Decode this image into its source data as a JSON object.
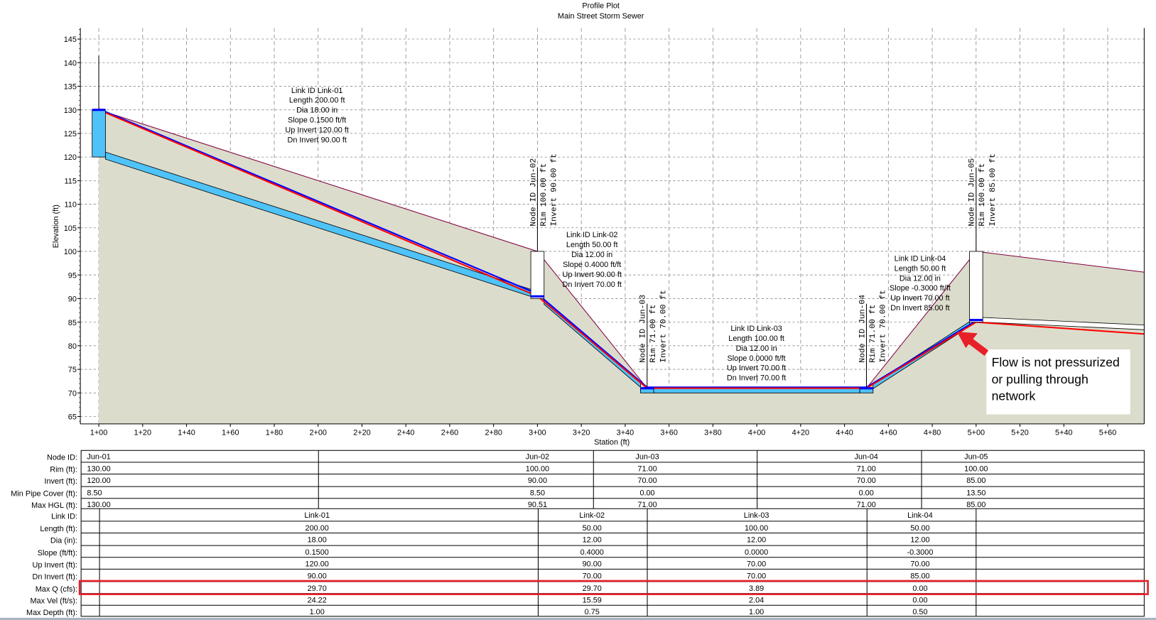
{
  "chart_data": {
    "type": "line",
    "title": "Profile Plot",
    "subtitle": "Main Street Storm Sewer",
    "xlabel": "Station (ft)",
    "ylabel": "Elevation (ft)",
    "xlim_ft": [
      92,
      577
    ],
    "ylim": [
      63.4,
      147.8
    ],
    "grid": true,
    "y_ticks": [
      65,
      70,
      75,
      80,
      85,
      90,
      95,
      100,
      105,
      110,
      115,
      120,
      125,
      130,
      135,
      140,
      145
    ],
    "x_ticks": [
      {
        "ft": 100,
        "label": "1+00"
      },
      {
        "ft": 120,
        "label": "1+20"
      },
      {
        "ft": 140,
        "label": "1+40"
      },
      {
        "ft": 160,
        "label": "1+60"
      },
      {
        "ft": 180,
        "label": "1+80"
      },
      {
        "ft": 200,
        "label": "2+00"
      },
      {
        "ft": 220,
        "label": "2+20"
      },
      {
        "ft": 240,
        "label": "2+40"
      },
      {
        "ft": 260,
        "label": "2+60"
      },
      {
        "ft": 280,
        "label": "2+80"
      },
      {
        "ft": 300,
        "label": "3+00"
      },
      {
        "ft": 320,
        "label": "3+20"
      },
      {
        "ft": 340,
        "label": "3+40"
      },
      {
        "ft": 360,
        "label": "3+60"
      },
      {
        "ft": 380,
        "label": "3+80"
      },
      {
        "ft": 400,
        "label": "4+00"
      },
      {
        "ft": 420,
        "label": "4+20"
      },
      {
        "ft": 440,
        "label": "4+40"
      },
      {
        "ft": 460,
        "label": "4+60"
      },
      {
        "ft": 480,
        "label": "4+80"
      },
      {
        "ft": 500,
        "label": "5+00"
      },
      {
        "ft": 520,
        "label": "5+20"
      },
      {
        "ft": 540,
        "label": "5+40"
      },
      {
        "ft": 560,
        "label": "5+60"
      }
    ],
    "ground": [
      [
        100,
        130
      ],
      [
        300,
        100
      ],
      [
        350,
        71
      ],
      [
        450,
        71
      ],
      [
        500,
        100
      ],
      [
        577,
        95.6
      ]
    ],
    "hgl": [
      [
        100,
        130
      ],
      [
        300,
        90.5
      ],
      [
        350,
        71
      ],
      [
        450,
        71
      ],
      [
        500,
        85
      ],
      [
        577,
        82.5
      ]
    ],
    "egl": [
      [
        100,
        130.2
      ],
      [
        300,
        91
      ],
      [
        350,
        71.2
      ],
      [
        450,
        71.2
      ],
      [
        500,
        85.3
      ]
    ],
    "outlet_pipe": {
      "from": [
        500,
        85
      ],
      "to": [
        577,
        83.4
      ],
      "dia_ft": 1
    },
    "nodes": [
      {
        "id": "Jun-01",
        "station": 100,
        "rim": 130,
        "invert": 120,
        "full": true,
        "label_lines": []
      },
      {
        "id": "Jun-02",
        "station": 300,
        "rim": 100,
        "invert": 90,
        "full": false,
        "label_lines": [
          "Node ID Jun-02",
          "Rim 100.00 ft",
          "Invert 90.00 ft"
        ]
      },
      {
        "id": "Jun-03",
        "station": 350,
        "rim": 71,
        "invert": 70,
        "full": true,
        "label_lines": [
          "Node ID Jun-03",
          "Rim 71.00 ft",
          "Invert 70.00 ft"
        ]
      },
      {
        "id": "Jun-04",
        "station": 450,
        "rim": 71,
        "invert": 70,
        "full": true,
        "label_lines": [
          "Node ID Jun-04",
          "Rim 71.00 ft",
          "Invert 70.00 ft"
        ]
      },
      {
        "id": "Jun-05",
        "station": 500,
        "rim": 100,
        "invert": 85,
        "full": false,
        "label_lines": [
          "Node ID Jun-05",
          "Rim 100.00 ft",
          "Invert 85.00 ft"
        ]
      }
    ],
    "links": [
      {
        "id": "Link-01",
        "from": 100,
        "to": 300,
        "up_inv": 120,
        "dn_inv": 90,
        "dia_ft": 1.5,
        "label_lines": [
          "Link ID Link-01",
          "Length 200.00 ft",
          "Dia 18.00 in",
          "Slope 0.1500 ft/ft",
          "Up Invert 120.00 ft",
          "Dn Invert 90.00 ft"
        ]
      },
      {
        "id": "Link-02",
        "from": 300,
        "to": 350,
        "up_inv": 90,
        "dn_inv": 70,
        "dia_ft": 1,
        "label_lines": [
          "Link ID Link-02",
          "Length 50.00 ft",
          "Dia 12.00 in",
          "Slope 0.4000 ft/ft",
          "Up Invert 90.00 ft",
          "Dn Invert 70.00 ft"
        ]
      },
      {
        "id": "Link-03",
        "from": 350,
        "to": 450,
        "up_inv": 70,
        "dn_inv": 70,
        "dia_ft": 1,
        "label_lines": [
          "Link ID Link-03",
          "Length 100.00 ft",
          "Dia 12.00 in",
          "Slope 0.0000 ft/ft",
          "Up Invert 70.00 ft",
          "Dn Invert 70.00 ft"
        ]
      },
      {
        "id": "Link-04",
        "from": 450,
        "to": 500,
        "up_inv": 70,
        "dn_inv": 85,
        "dia_ft": 1,
        "label_lines": [
          "Link ID Link-04",
          "Length 50.00 ft",
          "Dia 12.00 in",
          "Slope -0.3000 ft/ft",
          "Up Invert 70.00 ft",
          "Dn Invert 85.00 ft"
        ]
      }
    ],
    "annotation": {
      "lines": [
        "Flow is not pressurized",
        "or pulling through",
        "network"
      ],
      "color": "#e8202a"
    }
  },
  "table": {
    "node_labels": [
      "Node ID:",
      "Rim (ft):",
      "Invert (ft):",
      "Min Pipe Cover (ft):",
      "Max HGL (ft):"
    ],
    "node_rows": [
      [
        "Jun-01",
        "Jun-02",
        "Jun-03",
        "Jun-04",
        "Jun-05"
      ],
      [
        "130.00",
        "100.00",
        "71.00",
        "71.00",
        "100.00"
      ],
      [
        "120.00",
        "90.00",
        "70.00",
        "70.00",
        "85.00"
      ],
      [
        "8.50",
        "8.50",
        "0.00",
        "0.00",
        "13.50"
      ],
      [
        "130.00",
        "90.51",
        "71.00",
        "71.00",
        "85.00"
      ]
    ],
    "link_labels": [
      "Link ID:",
      "Length (ft):",
      "Dia (in):",
      "Slope (ft/ft):",
      "Up Invert (ft):",
      "Dn Invert (ft):",
      "Max Q (cfs):",
      "Max Vel (ft/s):",
      "Max Depth (ft):"
    ],
    "link_rows": [
      [
        "Link-01",
        "Link-02",
        "Link-03",
        "Link-04"
      ],
      [
        "200.00",
        "50.00",
        "100.00",
        "50.00"
      ],
      [
        "18.00",
        "12.00",
        "12.00",
        "12.00"
      ],
      [
        "0.1500",
        "0.4000",
        "0.0000",
        "-0.3000"
      ],
      [
        "120.00",
        "90.00",
        "70.00",
        "70.00"
      ],
      [
        "90.00",
        "70.00",
        "70.00",
        "85.00"
      ],
      [
        "29.70",
        "29.70",
        "3.89",
        "0.00"
      ],
      [
        "24.22",
        "15.59",
        "2.04",
        "0.00"
      ],
      [
        "1.00",
        "0.75",
        "1.00",
        "0.50"
      ]
    ],
    "highlight_row": "Max Q (cfs):"
  },
  "colors": {
    "ground": "#dcdccc",
    "ground_line": "#800040",
    "pipe": "#4fc3f7",
    "hgl": "#ff0000",
    "egl": "#0000ff",
    "highlight": "#e8202a"
  }
}
